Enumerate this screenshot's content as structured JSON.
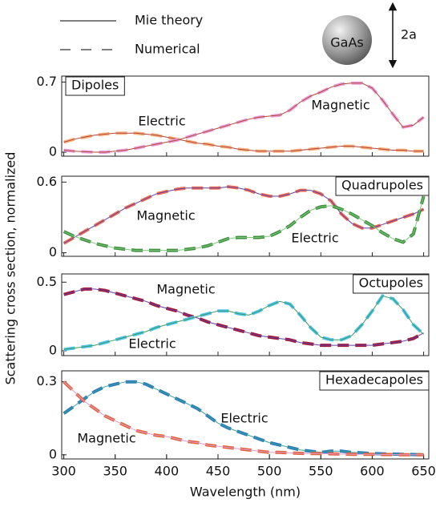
{
  "legend": {
    "items": [
      "Mie theory",
      "Numerical"
    ]
  },
  "sphere": {
    "label": "GaAs",
    "dimension": "2a"
  },
  "y_label": "Scattering cross section, normalized",
  "chart_data": [
    {
      "type": "line",
      "title": "Dipoles",
      "x": [
        300,
        310,
        320,
        330,
        340,
        350,
        360,
        370,
        380,
        390,
        400,
        410,
        420,
        430,
        440,
        450,
        460,
        470,
        480,
        490,
        500,
        510,
        520,
        530,
        540,
        550,
        560,
        570,
        580,
        590,
        600,
        610,
        620,
        630,
        640,
        650
      ],
      "xlim": [
        298,
        655
      ],
      "ylim": [
        -0.04,
        0.76
      ],
      "yticks": [
        0,
        0.7
      ],
      "series": [
        {
          "name": "Electric",
          "color": "#f8b07c",
          "line_color": "#b5443a",
          "values": [
            0.1,
            0.13,
            0.15,
            0.17,
            0.18,
            0.19,
            0.19,
            0.19,
            0.18,
            0.17,
            0.15,
            0.13,
            0.11,
            0.09,
            0.08,
            0.06,
            0.05,
            0.03,
            0.02,
            0.01,
            0.01,
            0.01,
            0.01,
            0.02,
            0.03,
            0.04,
            0.05,
            0.06,
            0.06,
            0.05,
            0.04,
            0.03,
            0.02,
            0.02,
            0.01,
            0.01
          ]
        },
        {
          "name": "Magnetic",
          "color": "#e8a0d8",
          "line_color": "#b5443a",
          "values": [
            0.02,
            0.01,
            0.005,
            0,
            0,
            0.01,
            0.02,
            0.04,
            0.06,
            0.08,
            0.1,
            0.12,
            0.15,
            0.18,
            0.21,
            0.24,
            0.27,
            0.3,
            0.33,
            0.35,
            0.36,
            0.37,
            0.42,
            0.5,
            0.56,
            0.6,
            0.65,
            0.68,
            0.69,
            0.69,
            0.64,
            0.52,
            0.38,
            0.25,
            0.27,
            0.35
          ]
        }
      ]
    },
    {
      "type": "line",
      "title": "Quadrupoles",
      "x": [
        300,
        310,
        320,
        330,
        340,
        350,
        360,
        370,
        380,
        390,
        400,
        410,
        420,
        430,
        440,
        450,
        460,
        470,
        480,
        490,
        500,
        510,
        520,
        530,
        540,
        550,
        560,
        570,
        580,
        590,
        600,
        610,
        620,
        630,
        640,
        650
      ],
      "xlim": [
        298,
        655
      ],
      "ylim": [
        -0.03,
        0.65
      ],
      "yticks": [
        0,
        0.6
      ],
      "series": [
        {
          "name": "Magnetic",
          "color": "#ee6f57",
          "line_color": "#6a3d9a",
          "values": [
            0.08,
            0.13,
            0.18,
            0.23,
            0.28,
            0.33,
            0.38,
            0.42,
            0.46,
            0.5,
            0.52,
            0.54,
            0.55,
            0.55,
            0.55,
            0.55,
            0.56,
            0.55,
            0.53,
            0.5,
            0.48,
            0.48,
            0.5,
            0.53,
            0.53,
            0.5,
            0.44,
            0.33,
            0.25,
            0.21,
            0.21,
            0.24,
            0.27,
            0.3,
            0.33,
            0.37
          ]
        },
        {
          "name": "Electric",
          "color": "#3d8f3d",
          "line_color": "#7fc97f",
          "values": [
            0.18,
            0.14,
            0.11,
            0.08,
            0.06,
            0.04,
            0.03,
            0.02,
            0.02,
            0.02,
            0.02,
            0.02,
            0.03,
            0.04,
            0.06,
            0.09,
            0.12,
            0.13,
            0.13,
            0.13,
            0.14,
            0.18,
            0.23,
            0.3,
            0.36,
            0.39,
            0.4,
            0.37,
            0.33,
            0.28,
            0.23,
            0.17,
            0.12,
            0.09,
            0.16,
            0.48
          ]
        }
      ]
    },
    {
      "type": "line",
      "title": "Octupoles",
      "x": [
        300,
        310,
        320,
        330,
        340,
        350,
        360,
        370,
        380,
        390,
        400,
        410,
        420,
        430,
        440,
        450,
        460,
        470,
        480,
        490,
        500,
        510,
        520,
        530,
        540,
        550,
        560,
        570,
        580,
        590,
        600,
        610,
        620,
        630,
        640,
        650
      ],
      "xlim": [
        298,
        655
      ],
      "ylim": [
        -0.035,
        0.56
      ],
      "yticks": [
        0,
        0.5
      ],
      "series": [
        {
          "name": "Magnetic",
          "color": "#9e1b3c",
          "line_color": "#6a3d9a",
          "values": [
            0.41,
            0.43,
            0.45,
            0.45,
            0.44,
            0.42,
            0.4,
            0.38,
            0.36,
            0.33,
            0.31,
            0.29,
            0.26,
            0.24,
            0.21,
            0.19,
            0.17,
            0.15,
            0.13,
            0.11,
            0.1,
            0.09,
            0.08,
            0.06,
            0.05,
            0.04,
            0.04,
            0.04,
            0.04,
            0.04,
            0.04,
            0.05,
            0.06,
            0.07,
            0.09,
            0.13
          ]
        },
        {
          "name": "Electric",
          "color": "#4fc3e8",
          "line_color": "#3a9a6a",
          "values": [
            0.01,
            0.02,
            0.03,
            0.04,
            0.06,
            0.08,
            0.1,
            0.12,
            0.14,
            0.17,
            0.19,
            0.21,
            0.23,
            0.25,
            0.27,
            0.29,
            0.29,
            0.27,
            0.26,
            0.29,
            0.33,
            0.36,
            0.34,
            0.26,
            0.17,
            0.1,
            0.08,
            0.08,
            0.11,
            0.19,
            0.29,
            0.4,
            0.38,
            0.3,
            0.19,
            0.12
          ]
        }
      ]
    },
    {
      "type": "line",
      "title": "Hexadecapoles",
      "x": [
        300,
        310,
        320,
        330,
        340,
        350,
        360,
        370,
        380,
        390,
        400,
        410,
        420,
        430,
        440,
        450,
        460,
        470,
        480,
        490,
        500,
        510,
        520,
        530,
        540,
        550,
        560,
        570,
        580,
        590,
        600,
        610,
        620,
        630,
        640,
        650
      ],
      "xlim": [
        298,
        655
      ],
      "ylim": [
        -0.017,
        0.345
      ],
      "yticks": [
        0,
        0.3
      ],
      "xticks": [
        300,
        350,
        400,
        450,
        500,
        550,
        600,
        650
      ],
      "xlabel": "Wavelength (nm)",
      "series": [
        {
          "name": "Electric",
          "color": "#2b7bba",
          "line_color": "#3aa0a0",
          "values": [
            0.17,
            0.2,
            0.23,
            0.26,
            0.28,
            0.29,
            0.3,
            0.3,
            0.29,
            0.27,
            0.25,
            0.23,
            0.21,
            0.19,
            0.16,
            0.13,
            0.11,
            0.095,
            0.08,
            0.065,
            0.05,
            0.04,
            0.03,
            0.02,
            0.015,
            0.01,
            0.015,
            0.015,
            0.01,
            0.008,
            0.005,
            0.004,
            0.003,
            0.002,
            0.001,
            0
          ]
        },
        {
          "name": "Magnetic",
          "color": "#e0643a",
          "line_color": "#e59ad0",
          "values": [
            0.3,
            0.26,
            0.22,
            0.19,
            0.16,
            0.14,
            0.12,
            0.1,
            0.09,
            0.08,
            0.075,
            0.065,
            0.055,
            0.05,
            0.04,
            0.035,
            0.03,
            0.025,
            0.02,
            0.015,
            0.01,
            0.01,
            0.008,
            0.006,
            0.005,
            0.005,
            0.004,
            0.003,
            0.002,
            0.002,
            0.002,
            0.001,
            0.001,
            0,
            0,
            0
          ]
        }
      ]
    }
  ]
}
